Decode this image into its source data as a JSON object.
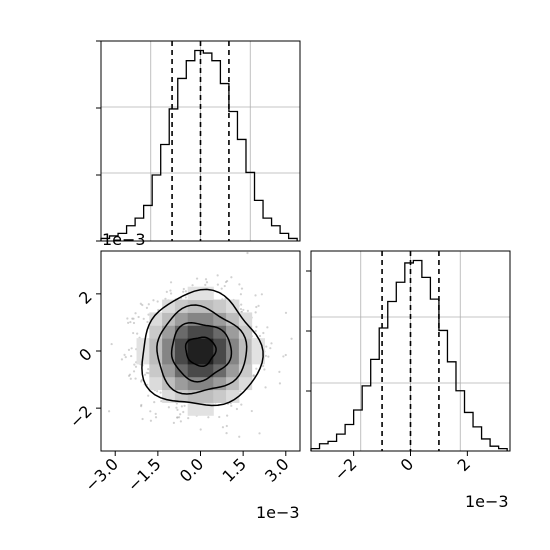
{
  "chart_data": [
    {
      "panel": "marginal-x",
      "type": "histogram",
      "bins": [
        -3.5,
        -3.2,
        -2.9,
        -2.6,
        -2.3,
        -2.0,
        -1.7,
        -1.4,
        -1.1,
        -0.8,
        -0.5,
        -0.2,
        0.1,
        0.4,
        0.7,
        1.0,
        1.3,
        1.6,
        1.9,
        2.2,
        2.5,
        2.8,
        3.1,
        3.4
      ],
      "counts": [
        1,
        2,
        3,
        6,
        9,
        14,
        26,
        38,
        52,
        64,
        71,
        75,
        74,
        71,
        62,
        51,
        40,
        27,
        16,
        9,
        6,
        3,
        1
      ],
      "quantiles": [
        -1.0,
        0.0,
        1.0
      ],
      "xlim": [
        -3.5,
        3.5
      ],
      "grid": true
    },
    {
      "panel": "joint",
      "type": "heatmap",
      "description": "2D histogram with scatter points and contour levels",
      "xlim": [
        -3.5,
        3.5
      ],
      "ylim": [
        -3.5,
        3.5
      ],
      "xticks": [
        "−3.0",
        "−1.5",
        "0.0",
        "1.5",
        "3.0"
      ],
      "yticks": [
        "−2",
        "0",
        "2"
      ],
      "x_scale_label": "1e−3",
      "y_scale_label": "1e−3",
      "contour_radii": [
        0.5,
        1.0,
        1.5,
        2.0
      ],
      "n_scatter": 1500
    },
    {
      "panel": "marginal-y",
      "type": "histogram",
      "bins": [
        -3.5,
        -3.2,
        -2.9,
        -2.6,
        -2.3,
        -2.0,
        -1.7,
        -1.4,
        -1.1,
        -0.8,
        -0.5,
        -0.2,
        0.1,
        0.4,
        0.7,
        1.0,
        1.3,
        1.6,
        1.9,
        2.2,
        2.5,
        2.8,
        3.1,
        3.4
      ],
      "counts": [
        1,
        3,
        4,
        7,
        11,
        17,
        27,
        38,
        51,
        62,
        70,
        78,
        79,
        72,
        63,
        50,
        37,
        25,
        16,
        10,
        5,
        2,
        1
      ],
      "quantiles": [
        -1.0,
        0.0,
        1.0
      ],
      "xlim": [
        -3.5,
        3.5
      ],
      "xticks": [
        "−2",
        "0",
        "2"
      ],
      "x_scale_label": "1e−3",
      "grid": true
    }
  ]
}
